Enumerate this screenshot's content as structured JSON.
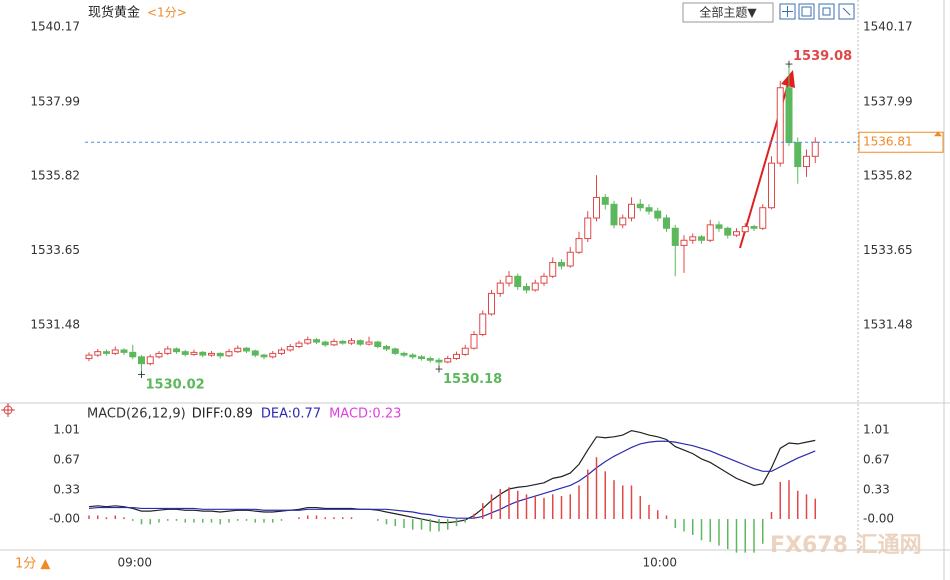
{
  "header": {
    "title": "现货黄金",
    "period": "<1分>",
    "theme_button": "全部主题▼"
  },
  "footer": {
    "period": "1分 ▲",
    "watermark": "FX678 汇通网"
  },
  "chart_data": [
    {
      "type": "candlestick",
      "categories": [
        null,
        null,
        null,
        null,
        null,
        "09:00",
        null,
        null,
        null,
        null,
        null,
        null,
        null,
        null,
        null,
        null,
        null,
        null,
        null,
        null,
        null,
        null,
        null,
        null,
        null,
        null,
        null,
        null,
        null,
        null,
        null,
        null,
        null,
        null,
        null,
        null,
        null,
        null,
        null,
        null,
        null,
        null,
        null,
        null,
        null,
        null,
        null,
        null,
        null,
        null,
        null,
        null,
        null,
        null,
        null,
        null,
        null,
        null,
        null,
        null,
        null,
        null,
        null,
        null,
        null,
        "10:00",
        null,
        null,
        null,
        null,
        null,
        null,
        null,
        null,
        null,
        null,
        null,
        null,
        null,
        null,
        null,
        null,
        null,
        null
      ],
      "candles": [
        [
          1530.5,
          1530.68,
          1530.42,
          1530.6
        ],
        [
          1530.6,
          1530.78,
          1530.55,
          1530.7
        ],
        [
          1530.7,
          1530.76,
          1530.58,
          1530.65
        ],
        [
          1530.65,
          1530.85,
          1530.6,
          1530.75
        ],
        [
          1530.75,
          1530.8,
          1530.6,
          1530.68
        ],
        [
          1530.68,
          1530.9,
          1530.48,
          1530.55
        ],
        [
          1530.55,
          1530.6,
          1530.02,
          1530.35
        ],
        [
          1530.35,
          1530.62,
          1530.3,
          1530.55
        ],
        [
          1530.55,
          1530.72,
          1530.5,
          1530.65
        ],
        [
          1530.65,
          1530.86,
          1530.6,
          1530.78
        ],
        [
          1530.78,
          1530.82,
          1530.64,
          1530.7
        ],
        [
          1530.7,
          1530.75,
          1530.56,
          1530.62
        ],
        [
          1530.62,
          1530.76,
          1530.58,
          1530.68
        ],
        [
          1530.68,
          1530.72,
          1530.54,
          1530.6
        ],
        [
          1530.6,
          1530.72,
          1530.55,
          1530.65
        ],
        [
          1530.65,
          1530.68,
          1530.5,
          1530.58
        ],
        [
          1530.58,
          1530.78,
          1530.54,
          1530.7
        ],
        [
          1530.7,
          1530.88,
          1530.66,
          1530.8
        ],
        [
          1530.8,
          1530.84,
          1530.66,
          1530.72
        ],
        [
          1530.72,
          1530.76,
          1530.54,
          1530.6
        ],
        [
          1530.6,
          1530.64,
          1530.48,
          1530.55
        ],
        [
          1530.55,
          1530.72,
          1530.5,
          1530.65
        ],
        [
          1530.65,
          1530.82,
          1530.6,
          1530.75
        ],
        [
          1530.75,
          1530.92,
          1530.7,
          1530.85
        ],
        [
          1530.85,
          1531.02,
          1530.8,
          1530.95
        ],
        [
          1530.95,
          1531.14,
          1530.9,
          1531.05
        ],
        [
          1531.05,
          1531.1,
          1530.92,
          1530.98
        ],
        [
          1530.98,
          1531.02,
          1530.84,
          1530.9
        ],
        [
          1530.9,
          1531.08,
          1530.86,
          1531.0
        ],
        [
          1531.0,
          1531.04,
          1530.9,
          1530.95
        ],
        [
          1530.95,
          1531.1,
          1530.9,
          1531.02
        ],
        [
          1531.02,
          1531.06,
          1530.86,
          1530.92
        ],
        [
          1530.92,
          1531.14,
          1530.88,
          1530.98
        ],
        [
          1530.98,
          1531.02,
          1530.8,
          1530.85
        ],
        [
          1530.85,
          1530.9,
          1530.72,
          1530.78
        ],
        [
          1530.78,
          1530.82,
          1530.6,
          1530.65
        ],
        [
          1530.65,
          1530.7,
          1530.54,
          1530.6
        ],
        [
          1530.6,
          1530.66,
          1530.48,
          1530.55
        ],
        [
          1530.55,
          1530.6,
          1530.44,
          1530.5
        ],
        [
          1530.5,
          1530.56,
          1530.38,
          1530.45
        ],
        [
          1530.45,
          1530.52,
          1530.18,
          1530.4
        ],
        [
          1530.4,
          1530.58,
          1530.36,
          1530.5
        ],
        [
          1530.5,
          1530.7,
          1530.46,
          1530.62
        ],
        [
          1530.62,
          1530.9,
          1530.58,
          1530.8
        ],
        [
          1530.8,
          1531.3,
          1530.76,
          1531.2
        ],
        [
          1531.2,
          1531.9,
          1531.15,
          1531.8
        ],
        [
          1531.8,
          1532.5,
          1531.75,
          1532.4
        ],
        [
          1532.4,
          1532.8,
          1532.3,
          1532.7
        ],
        [
          1532.7,
          1533.05,
          1532.6,
          1532.9
        ],
        [
          1532.9,
          1532.98,
          1532.5,
          1532.6
        ],
        [
          1532.6,
          1532.7,
          1532.4,
          1532.5
        ],
        [
          1532.5,
          1532.8,
          1532.45,
          1532.7
        ],
        [
          1532.7,
          1533.0,
          1532.62,
          1532.9
        ],
        [
          1532.9,
          1533.45,
          1532.85,
          1533.3
        ],
        [
          1533.3,
          1533.4,
          1533.1,
          1533.2
        ],
        [
          1533.2,
          1533.75,
          1533.15,
          1533.6
        ],
        [
          1533.6,
          1534.2,
          1533.55,
          1534.0
        ],
        [
          1534.0,
          1534.8,
          1533.9,
          1534.6
        ],
        [
          1534.6,
          1535.85,
          1534.5,
          1535.2
        ],
        [
          1535.2,
          1535.3,
          1534.85,
          1535.0
        ],
        [
          1535.0,
          1535.1,
          1534.3,
          1534.4
        ],
        [
          1534.4,
          1534.7,
          1534.3,
          1534.6
        ],
        [
          1534.6,
          1535.2,
          1534.5,
          1535.0
        ],
        [
          1535.0,
          1535.15,
          1534.8,
          1534.9
        ],
        [
          1534.9,
          1535.0,
          1534.7,
          1534.8
        ],
        [
          1534.8,
          1534.9,
          1534.5,
          1534.6
        ],
        [
          1534.6,
          1534.7,
          1534.2,
          1534.3
        ],
        [
          1534.3,
          1534.4,
          1532.9,
          1533.8
        ],
        [
          1533.8,
          1534.1,
          1533.0,
          1533.95
        ],
        [
          1533.95,
          1534.15,
          1533.85,
          1534.05
        ],
        [
          1534.05,
          1534.1,
          1533.85,
          1533.95
        ],
        [
          1533.95,
          1534.55,
          1533.9,
          1534.4
        ],
        [
          1534.4,
          1534.5,
          1534.2,
          1534.3
        ],
        [
          1534.3,
          1534.35,
          1534.0,
          1534.1
        ],
        [
          1534.1,
          1534.3,
          1534.05,
          1534.2
        ],
        [
          1534.2,
          1534.45,
          1534.15,
          1534.35
        ],
        [
          1534.35,
          1534.4,
          1534.22,
          1534.3
        ],
        [
          1534.3,
          1535.0,
          1534.25,
          1534.9
        ],
        [
          1534.9,
          1536.4,
          1534.85,
          1536.2
        ],
        [
          1536.2,
          1538.6,
          1536.1,
          1538.4
        ],
        [
          1538.4,
          1539.08,
          1536.7,
          1536.8
        ],
        [
          1536.8,
          1536.95,
          1535.6,
          1536.1
        ],
        [
          1536.1,
          1536.6,
          1535.8,
          1536.4
        ],
        [
          1536.4,
          1536.95,
          1536.2,
          1536.81
        ]
      ],
      "up_color": "#e04848",
      "down_color": "#5cb85c",
      "last_line_color": "#4a90e2",
      "label_color": "#f08a24",
      "ylim": [
        1529.29,
        1540.96
      ],
      "yticks": [
        1531.48,
        1533.65,
        1535.82,
        1537.99,
        1540.17
      ],
      "annotations": [
        "1530.02",
        "1530.18",
        "1539.08"
      ]
    },
    {
      "type": "macd",
      "title": "MACD(26,12,9)",
      "up_color": "#e04848",
      "down_color": "#5cb85c",
      "ylim": [
        -0.35,
        1.29
      ],
      "yticks": [
        {
          "value": 0,
          "label": "-0.00"
        },
        0.33,
        0.67,
        1.01
      ],
      "series": [
        {
          "name": "DIFF:0.89",
          "color": "#222222",
          "values": [
            0.14,
            0.15,
            0.14,
            0.15,
            0.14,
            0.12,
            0.09,
            0.09,
            0.1,
            0.11,
            0.11,
            0.1,
            0.1,
            0.09,
            0.09,
            0.08,
            0.09,
            0.1,
            0.1,
            0.09,
            0.08,
            0.08,
            0.09,
            0.1,
            0.11,
            0.13,
            0.13,
            0.12,
            0.12,
            0.12,
            0.12,
            0.11,
            0.11,
            0.1,
            0.08,
            0.06,
            0.04,
            0.02,
            0.0,
            -0.02,
            -0.04,
            -0.04,
            -0.03,
            -0.01,
            0.04,
            0.12,
            0.21,
            0.28,
            0.34,
            0.36,
            0.37,
            0.39,
            0.41,
            0.46,
            0.48,
            0.52,
            0.62,
            0.78,
            0.93,
            0.92,
            0.93,
            0.95,
            1.0,
            0.98,
            0.95,
            0.93,
            0.9,
            0.82,
            0.78,
            0.74,
            0.68,
            0.64,
            0.58,
            0.52,
            0.46,
            0.42,
            0.38,
            0.4,
            0.58,
            0.8,
            0.86,
            0.85,
            0.87,
            0.89
          ]
        },
        {
          "name": "DEA:0.77",
          "color": "#2b2bb0",
          "values": [
            0.12,
            0.13,
            0.13,
            0.13,
            0.13,
            0.13,
            0.12,
            0.12,
            0.12,
            0.12,
            0.12,
            0.12,
            0.12,
            0.11,
            0.11,
            0.11,
            0.11,
            0.11,
            0.11,
            0.11,
            0.1,
            0.1,
            0.1,
            0.1,
            0.1,
            0.11,
            0.11,
            0.11,
            0.11,
            0.11,
            0.11,
            0.11,
            0.11,
            0.11,
            0.11,
            0.1,
            0.09,
            0.08,
            0.06,
            0.05,
            0.03,
            0.02,
            0.01,
            0.01,
            0.01,
            0.03,
            0.07,
            0.11,
            0.16,
            0.2,
            0.23,
            0.26,
            0.29,
            0.32,
            0.35,
            0.38,
            0.43,
            0.5,
            0.58,
            0.65,
            0.71,
            0.76,
            0.81,
            0.85,
            0.87,
            0.88,
            0.88,
            0.87,
            0.85,
            0.83,
            0.8,
            0.77,
            0.73,
            0.69,
            0.65,
            0.61,
            0.57,
            0.54,
            0.54,
            0.59,
            0.64,
            0.69,
            0.73,
            0.77
          ]
        },
        {
          "name": "MACD:0.23",
          "color": "#e040e0",
          "values": [
            0.04,
            0.04,
            0.02,
            0.04,
            0.02,
            -0.02,
            -0.06,
            -0.06,
            -0.04,
            -0.02,
            -0.02,
            -0.04,
            -0.04,
            -0.04,
            -0.04,
            -0.06,
            -0.04,
            -0.02,
            -0.02,
            -0.04,
            -0.04,
            -0.04,
            -0.02,
            0,
            0.02,
            0.04,
            0.04,
            0.02,
            0.02,
            0.02,
            0.02,
            0,
            0,
            -0.02,
            -0.06,
            -0.08,
            -0.1,
            -0.12,
            -0.12,
            -0.14,
            -0.14,
            -0.12,
            -0.08,
            -0.04,
            0.06,
            0.18,
            0.28,
            0.34,
            0.36,
            0.32,
            0.28,
            0.26,
            0.24,
            0.28,
            0.26,
            0.28,
            0.38,
            0.56,
            0.7,
            0.54,
            0.44,
            0.38,
            0.38,
            0.26,
            0.16,
            0.1,
            0.04,
            -0.1,
            -0.14,
            -0.18,
            -0.24,
            -0.26,
            -0.3,
            -0.34,
            -0.38,
            -0.38,
            -0.38,
            -0.28,
            0.08,
            0.42,
            0.44,
            0.32,
            0.28,
            0.23
          ]
        }
      ]
    }
  ]
}
